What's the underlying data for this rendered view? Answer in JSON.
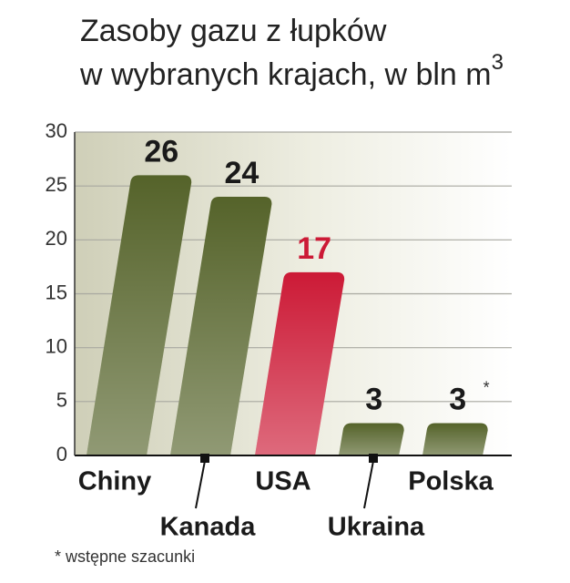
{
  "chart_data": {
    "type": "bar",
    "title": {
      "lines": [
        "Zasoby gazu z łupków",
        "w wybranych krajach, w bln m"
      ],
      "superscript": "3"
    },
    "categories": [
      "Chiny",
      "Kanada",
      "USA",
      "Ukraina",
      "Polska"
    ],
    "values": [
      26,
      24,
      17,
      3,
      3
    ],
    "colors": [
      "#55632a",
      "#55632a",
      "#cc1a36",
      "#55632a",
      "#55632a"
    ],
    "value_label_colors": [
      "#1a1a1a",
      "#1a1a1a",
      "#cc1a36",
      "#1a1a1a",
      "#1a1a1a"
    ],
    "annotation": "*",
    "footnote": "* wstępne szacunki",
    "ylim": [
      0,
      30
    ],
    "yticks": [
      0,
      5,
      10,
      15,
      20,
      25,
      30
    ],
    "grid": true
  }
}
